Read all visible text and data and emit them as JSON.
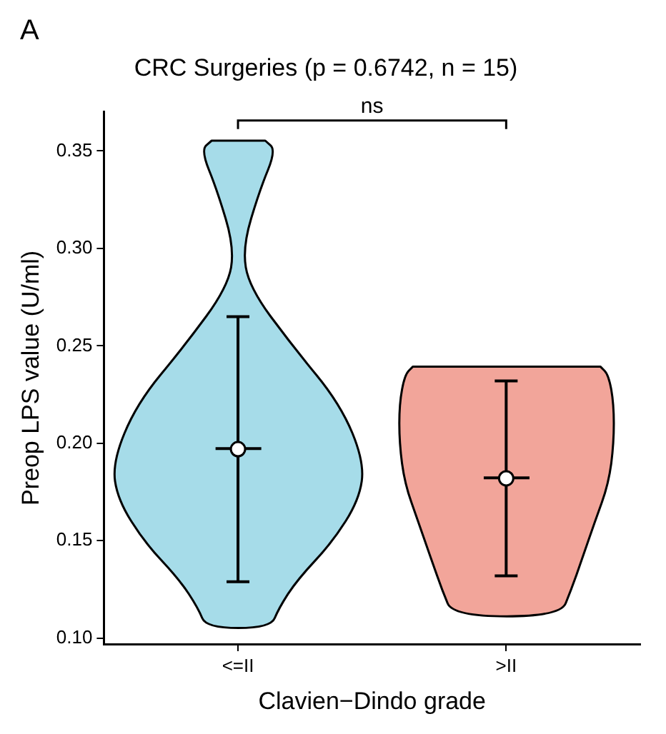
{
  "chart_data": {
    "type": "scatter",
    "title": "CRC Surgeries (p = 0.6742, n = 15)",
    "xlabel": "Clavien−Dindo grade",
    "ylabel": "Preop LPS value (U/ml)",
    "categories": [
      "<=II",
      ">II"
    ],
    "series": [
      {
        "x": [
          "<=II",
          ">II"
        ],
        "values": [
          0.197,
          0.182
        ],
        "errors": [
          [
            0.129,
            0.265
          ],
          [
            0.132,
            0.232
          ]
        ],
        "color": "#ffffff"
      }
    ],
    "marker": "circle",
    "ylim": [
      0.097,
      0.37
    ],
    "yticks": [
      {
        "value": 0.1,
        "label": "0.10"
      },
      0.15,
      {
        "value": 0.2,
        "label": "0.20"
      },
      0.25,
      {
        "value": 0.3,
        "label": "0.30"
      },
      0.35
    ],
    "grid": false,
    "legend": false,
    "annotations": [
      "A",
      "ns"
    ]
  }
}
